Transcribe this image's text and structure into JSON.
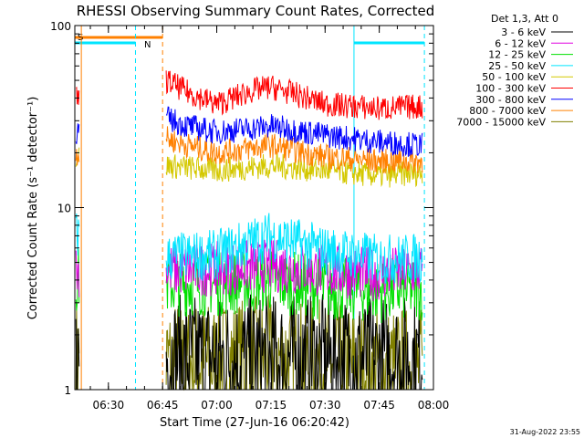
{
  "chart_data": {
    "type": "line",
    "title": "RHESSI Observing Summary Count Rates, Corrected",
    "xlabel": "Start Time (27-Jun-16 06:20:42)",
    "ylabel": "Corrected Count Rate (s⁻¹ detector⁻¹)",
    "yscale": "log",
    "ylim": [
      1,
      100
    ],
    "xlim": [
      "06:20:42",
      "08:00:00"
    ],
    "x_ticks": [
      "06:30",
      "06:45",
      "07:00",
      "07:15",
      "07:30",
      "07:45",
      "08:00"
    ],
    "y_ticks": [
      "1",
      "10",
      "100"
    ],
    "grid": false,
    "legend_position": "right",
    "legend_title": "Det 1,3, Att 0",
    "timestamp": "31-Aug-2022 23:55",
    "markers": [
      {
        "label": "S",
        "color": "#ff8000"
      },
      {
        "label": "N",
        "color": "#00e5ff"
      }
    ],
    "vertical_lines": [
      {
        "time": "06:22:30",
        "color": "#ff8000",
        "style": "solid"
      },
      {
        "time": "06:37:30",
        "color": "#00e5ff",
        "style": "dashed"
      },
      {
        "time": "06:45:00",
        "color": "#ff8000",
        "style": "dashed"
      },
      {
        "time": "07:38:00",
        "color": "#00e5ff",
        "style": "solid"
      },
      {
        "time": "07:57:30",
        "color": "#00e5ff",
        "style": "dashed"
      }
    ],
    "series": [
      {
        "name": "3 - 6 keV",
        "color": "#000000",
        "segments": [
          {
            "x": [
              "06:21",
              "06:22"
            ],
            "y": [
              1.5,
              1.5
            ]
          },
          {
            "x": [
              "06:46",
              "07:00",
              "07:15",
              "07:30",
              "07:45",
              "07:57"
            ],
            "y": [
              1.5,
              1.5,
              1.5,
              1.5,
              1.5,
              1.5
            ]
          }
        ]
      },
      {
        "name": "6 - 12 keV",
        "color": "#e000e0",
        "segments": [
          {
            "x": [
              "06:21",
              "06:22"
            ],
            "y": [
              4.5,
              4.5
            ]
          },
          {
            "x": [
              "06:46",
              "07:00",
              "07:15",
              "07:30",
              "07:45",
              "07:57"
            ],
            "y": [
              4.5,
              4.6,
              4.8,
              4.5,
              4.3,
              4.5
            ]
          }
        ]
      },
      {
        "name": "12 - 25 keV",
        "color": "#00e000",
        "segments": [
          {
            "x": [
              "06:21",
              "06:22"
            ],
            "y": [
              4.0,
              4.0
            ]
          },
          {
            "x": [
              "06:46",
              "07:00",
              "07:15",
              "07:30",
              "07:45",
              "07:57"
            ],
            "y": [
              3.8,
              3.8,
              4.0,
              3.6,
              3.5,
              3.6
            ]
          }
        ]
      },
      {
        "name": "25 - 50 keV",
        "color": "#00e5ff",
        "segments": [
          {
            "x": [
              "06:21",
              "06:22"
            ],
            "y": [
              7.0,
              7.0
            ]
          },
          {
            "x": [
              "06:46",
              "07:00",
              "07:10",
              "07:15",
              "07:30",
              "07:45",
              "07:57"
            ],
            "y": [
              5.3,
              5.5,
              6.5,
              7.0,
              5.8,
              5.2,
              5.3
            ]
          }
        ]
      },
      {
        "name": "50 - 100 keV",
        "color": "#d4c800",
        "segments": [
          {
            "x": [
              "06:21",
              "06:22"
            ],
            "y": [
              19,
              19
            ]
          },
          {
            "x": [
              "06:46",
              "07:00",
              "07:15",
              "07:30",
              "07:45",
              "07:57"
            ],
            "y": [
              17,
              16,
              17,
              16,
              15,
              15.5
            ]
          }
        ]
      },
      {
        "name": "100 - 300 keV",
        "color": "#ff0000",
        "segments": [
          {
            "x": [
              "06:21",
              "06:22"
            ],
            "y": [
              40,
              40
            ]
          },
          {
            "x": [
              "06:46",
              "06:52",
              "07:00",
              "07:10",
              "07:15",
              "07:20",
              "07:30",
              "07:45",
              "07:57"
            ],
            "y": [
              50,
              43,
              37,
              44,
              46,
              43,
              37,
              35,
              36
            ]
          }
        ]
      },
      {
        "name": "300 - 800 keV",
        "color": "#0000ff",
        "segments": [
          {
            "x": [
              "06:21",
              "06:22"
            ],
            "y": [
              26,
              26
            ]
          },
          {
            "x": [
              "06:46",
              "06:52",
              "07:00",
              "07:15",
              "07:30",
              "07:45",
              "07:57"
            ],
            "y": [
              31,
              28,
              26,
              28,
              25,
              23,
              22
            ]
          }
        ]
      },
      {
        "name": "800 - 7000 keV",
        "color": "#ff8000",
        "segments": [
          {
            "x": [
              "06:21",
              "06:22"
            ],
            "y": [
              20,
              20
            ]
          },
          {
            "x": [
              "06:46",
              "06:52",
              "07:00",
              "07:15",
              "07:30",
              "07:45",
              "07:57"
            ],
            "y": [
              24,
              22,
              20,
              22,
              19,
              18,
              18
            ]
          }
        ]
      },
      {
        "name": "7000 - 15000 keV",
        "color": "#808000",
        "segments": [
          {
            "x": [
              "06:21",
              "06:22"
            ],
            "y": [
              1.5,
              1.5
            ]
          },
          {
            "x": [
              "06:46",
              "07:00",
              "07:15",
              "07:30",
              "07:45",
              "07:57"
            ],
            "y": [
              1.4,
              1.4,
              1.5,
              1.4,
              1.3,
              1.3
            ]
          }
        ]
      }
    ]
  }
}
